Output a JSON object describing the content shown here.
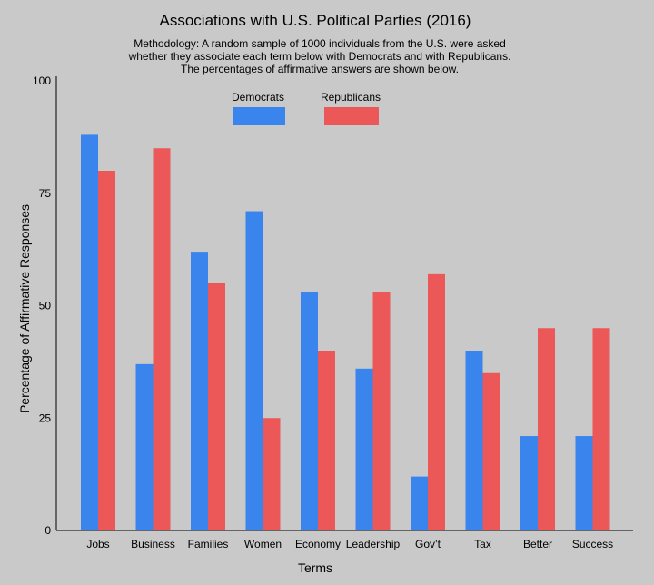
{
  "chart_data": {
    "type": "bar",
    "title": "Associations with U.S. Political Parties (2016)",
    "subtitle_lines": [
      "Methodology: A random sample of 1000 individuals from the U.S. were asked",
      "whether they associate each term below with Democrats and with Republicans.",
      "The percentages of affirmative answers are shown below."
    ],
    "xlabel": "Terms",
    "ylabel": "Percentage of Affirmative Responses",
    "ylim": [
      0,
      100
    ],
    "yticks": [
      0,
      25,
      50,
      75,
      100
    ],
    "categories": [
      "Jobs",
      "Business",
      "Families",
      "Women",
      "Economy",
      "Leadership",
      "Gov’t",
      "Tax",
      "Better",
      "Success"
    ],
    "series": [
      {
        "name": "Democrats",
        "color": "#3a84ee",
        "values": [
          88,
          37,
          62,
          71,
          53,
          36,
          12,
          40,
          21,
          21
        ]
      },
      {
        "name": "Republicans",
        "color": "#ec5757",
        "values": [
          80,
          85,
          55,
          25,
          40,
          53,
          57,
          35,
          45,
          45
        ]
      }
    ],
    "legend": "top-center",
    "grid": false
  }
}
